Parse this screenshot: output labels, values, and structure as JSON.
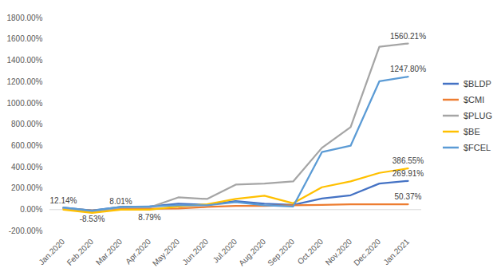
{
  "chart_data": {
    "type": "line",
    "categories": [
      "Jan.2020",
      "Feb.2020",
      "Mar.2020",
      "Apr.2020",
      "May.2020",
      "Jun.2020",
      "Jul.2020",
      "Aug.2020",
      "Sep.2020",
      "Oct.2020",
      "Nov.2020",
      "Dec.2020",
      "Jan.2021"
    ],
    "series": [
      {
        "name": "$BLDP",
        "color": "#4472C4",
        "values": [
          18,
          -8,
          25,
          30,
          55,
          45,
          80,
          55,
          45,
          105,
          135,
          245,
          269.91
        ],
        "value_labels": [
          null,
          null,
          null,
          null,
          null,
          null,
          null,
          null,
          null,
          null,
          null,
          null,
          "269.91%"
        ]
      },
      {
        "name": "$CMI",
        "color": "#ED7D31",
        "values": [
          12.14,
          -8.53,
          8.01,
          8.79,
          10,
          25,
          35,
          35,
          40,
          45,
          50,
          50,
          50.37
        ],
        "value_labels": [
          "12.14%",
          "-8.53%",
          "8.01%",
          "8.79%",
          null,
          null,
          null,
          null,
          null,
          null,
          null,
          null,
          "50.37%"
        ]
      },
      {
        "name": "$PLUG",
        "color": "#A5A5A5",
        "values": [
          10,
          -20,
          20,
          20,
          115,
          100,
          235,
          245,
          265,
          580,
          775,
          1530,
          1560.21
        ],
        "value_labels": [
          null,
          null,
          null,
          null,
          null,
          null,
          null,
          null,
          null,
          null,
          null,
          null,
          "1560.21%"
        ]
      },
      {
        "name": "$BE",
        "color": "#FFC000",
        "values": [
          0,
          -30,
          0,
          0,
          30,
          50,
          100,
          130,
          60,
          210,
          265,
          345,
          386.55
        ],
        "value_labels": [
          null,
          null,
          null,
          null,
          null,
          null,
          null,
          null,
          null,
          null,
          null,
          null,
          "386.55%"
        ]
      },
      {
        "name": "$FCEL",
        "color": "#5B9BD5",
        "values": [
          20,
          -10,
          25,
          30,
          40,
          40,
          70,
          40,
          30,
          540,
          600,
          1205,
          1247.8
        ],
        "value_labels": [
          null,
          null,
          null,
          null,
          null,
          null,
          null,
          null,
          null,
          null,
          null,
          null,
          "1247.80%"
        ]
      }
    ],
    "ylim": [
      -200,
      1800
    ],
    "yticks": [
      {
        "value": -200,
        "label": "-200.00%"
      },
      {
        "value": 0,
        "label": "0.00%"
      },
      {
        "value": 200,
        "label": "200.00%"
      },
      {
        "value": 400,
        "label": "400.00%"
      },
      {
        "value": 600,
        "label": "600.00%"
      },
      {
        "value": 800,
        "label": "800.00%"
      },
      {
        "value": 1000,
        "label": "1000.00%"
      },
      {
        "value": 1200,
        "label": "1200.00%"
      },
      {
        "value": 1400,
        "label": "1400.00%"
      },
      {
        "value": 1600,
        "label": "1600.00%"
      },
      {
        "value": 1800,
        "label": "1800.00%"
      }
    ],
    "grid": false,
    "legend": "right",
    "data_labels": true
  }
}
